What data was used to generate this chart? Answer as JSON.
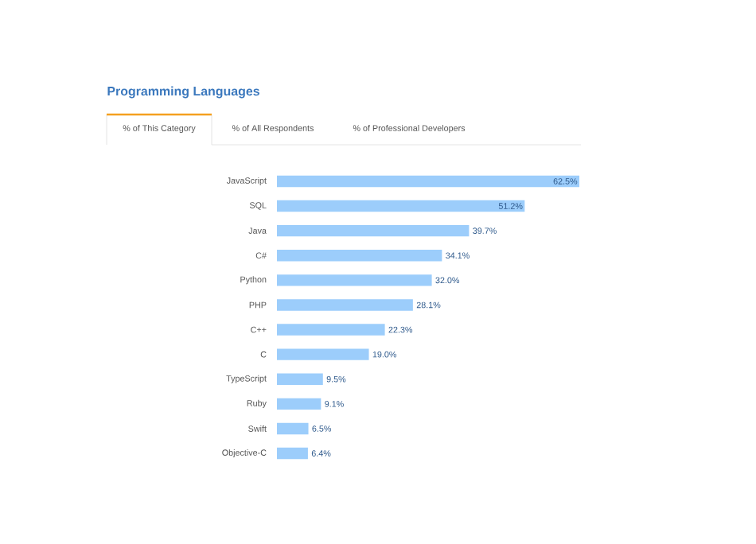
{
  "chart_data": {
    "type": "bar",
    "orientation": "horizontal",
    "title": "Programming Languages",
    "annotations": [
      "% of This Category",
      "% of All Respondents",
      "% of Professional Developers"
    ],
    "categories": [
      "JavaScript",
      "SQL",
      "Java",
      "C#",
      "Python",
      "PHP",
      "C++",
      "C",
      "TypeScript",
      "Ruby",
      "Swift",
      "Objective-C"
    ],
    "values": [
      62.5,
      51.2,
      39.7,
      34.1,
      32.0,
      28.1,
      22.3,
      19.0,
      9.5,
      9.1,
      6.5,
      6.4
    ],
    "value_labels": [
      "62.5%",
      "51.2%",
      "39.7%",
      "34.1%",
      "32.0%",
      "28.1%",
      "22.3%",
      "19.0%",
      "9.5%",
      "9.1%",
      "6.5%",
      "6.4%"
    ],
    "color": "#9ccdfb"
  }
}
